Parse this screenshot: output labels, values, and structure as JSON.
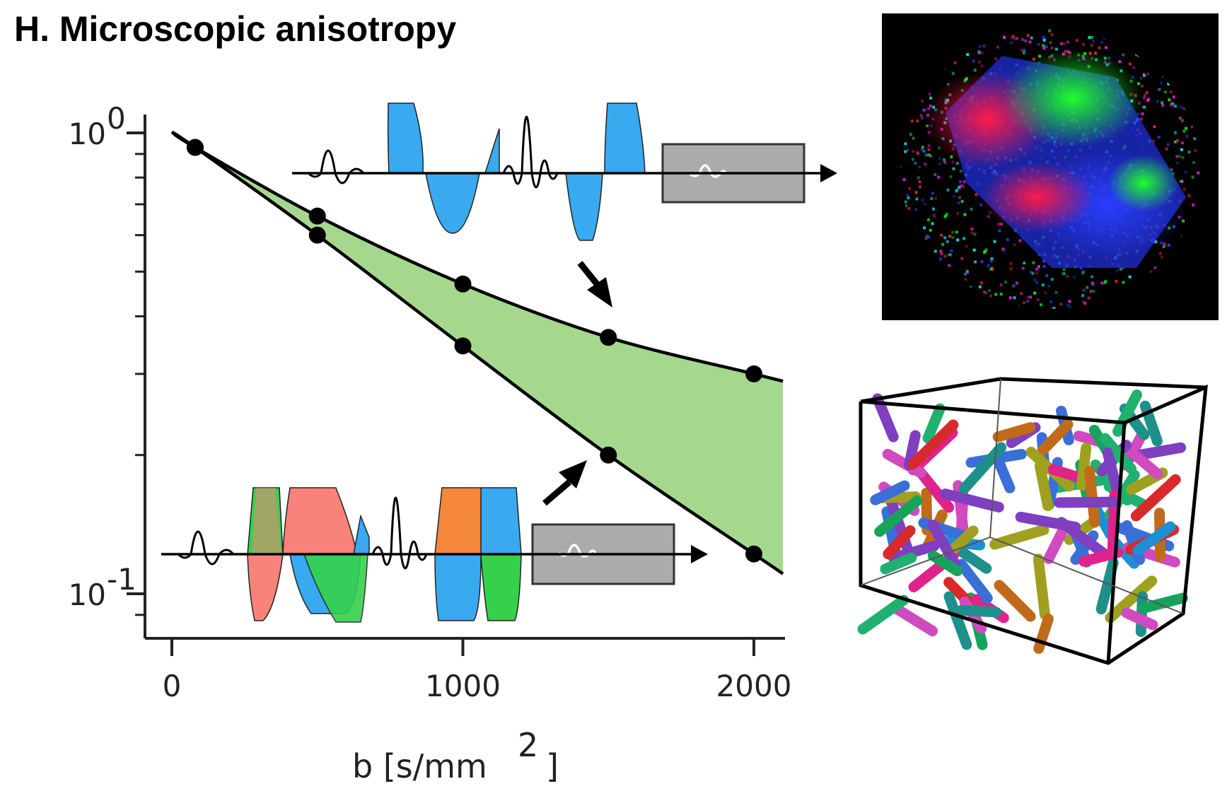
{
  "title": "H. Microscopic anisotropy",
  "colors": {
    "fill": "#a5d88d",
    "gradient_blue": "#39a9f0",
    "gradient_red": "#f7837a",
    "gradient_green": "#35d14c",
    "gradient_orange": "#f5873a",
    "readout_box": "#a9aca9"
  },
  "icons": {
    "top_sequence": "linear-encoding-gradient-waveform",
    "bottom_sequence": "spherical-encoding-gradient-waveform",
    "brain_image": "fractional-anisotropy-color-map",
    "rods_box": "randomly-oriented-rods-in-cube"
  },
  "chart_data": {
    "type": "line",
    "title": "H. Microscopic anisotropy",
    "xlabel": "b [s/mm",
    "xlabel_superscript": "2",
    "xlabel_suffix": "]",
    "ylabel": "",
    "xlim": [
      -50,
      2100
    ],
    "ylim": [
      0.085,
      1.15
    ],
    "yscale": "log",
    "grid": false,
    "legend": "none",
    "x_ticks": [
      0,
      1000,
      2000
    ],
    "x_tick_labels": [
      "0",
      "1000",
      "2000"
    ],
    "y_ticks": [
      1.0,
      0.1
    ],
    "y_tick_labels": [
      {
        "base": "10",
        "exp": "0"
      },
      {
        "base": "10",
        "exp": "-1"
      }
    ],
    "series": [
      {
        "x": [
          80,
          500,
          1000,
          1500,
          2000
        ],
        "y": [
          0.93,
          0.66,
          0.47,
          0.36,
          0.3
        ]
      },
      {
        "x": [
          80,
          500,
          1000,
          1500,
          2000
        ],
        "y": [
          0.93,
          0.6,
          0.345,
          0.2,
          0.122
        ]
      }
    ],
    "fill_between": {
      "series": [
        0,
        1
      ],
      "color": "#a5d88d"
    }
  }
}
